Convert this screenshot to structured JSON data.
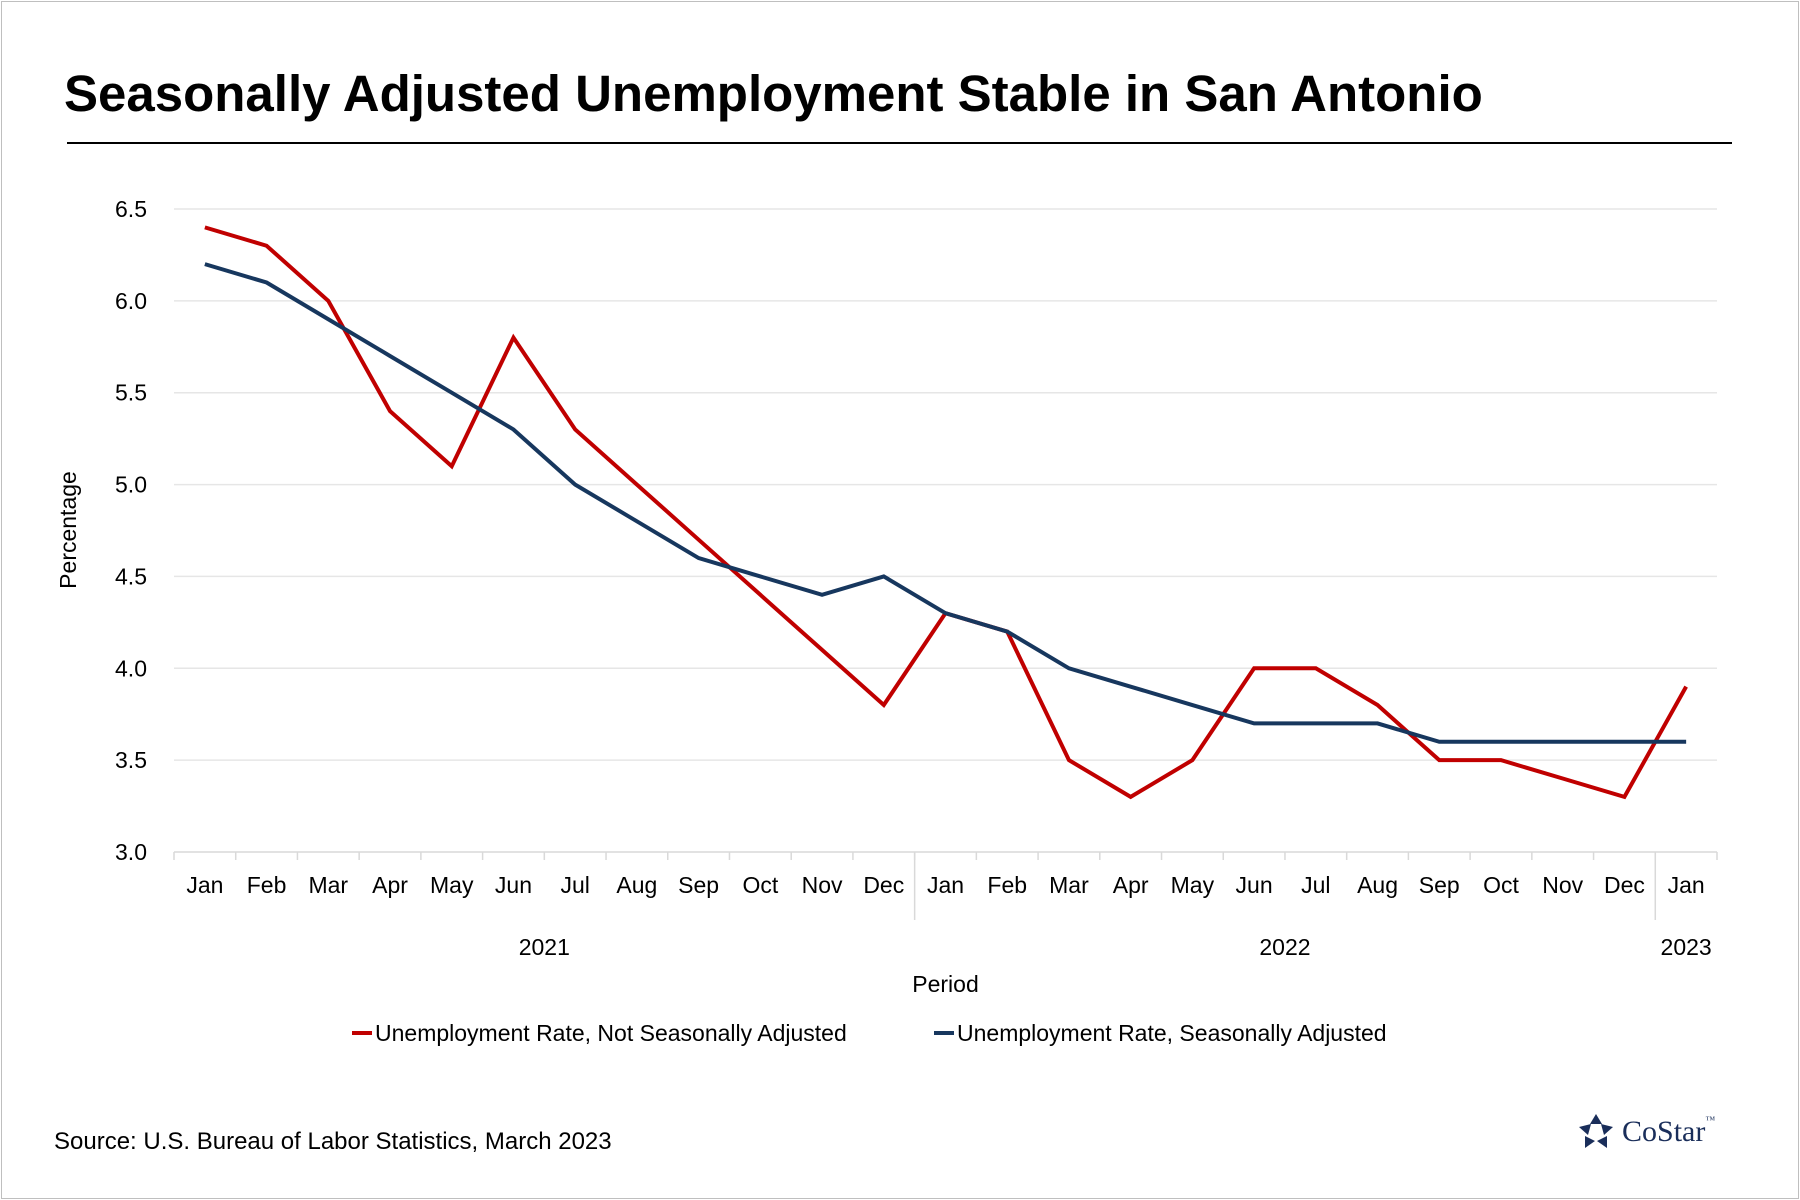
{
  "chart_data": {
    "type": "line",
    "title": "Seasonally Adjusted Unemployment Stable in San Antonio",
    "xlabel": "Period",
    "ylabel": "Percentage",
    "ylim": [
      3.0,
      6.5
    ],
    "yticks": [
      "3.0",
      "3.5",
      "4.0",
      "4.5",
      "5.0",
      "5.5",
      "6.0",
      "6.5"
    ],
    "grid": true,
    "legend_position": "bottom",
    "categories": [
      "Jan",
      "Feb",
      "Mar",
      "Apr",
      "May",
      "Jun",
      "Jul",
      "Aug",
      "Sep",
      "Oct",
      "Nov",
      "Dec",
      "Jan",
      "Feb",
      "Mar",
      "Apr",
      "May",
      "Jun",
      "Jul",
      "Aug",
      "Sep",
      "Oct",
      "Nov",
      "Dec",
      "Jan"
    ],
    "year_groups": [
      {
        "label": "2021",
        "start": 0,
        "end": 11
      },
      {
        "label": "2022",
        "start": 12,
        "end": 23
      },
      {
        "label": "2023",
        "start": 24,
        "end": 24
      }
    ],
    "series": [
      {
        "name": "Unemployment Rate, Not Seasonally Adjusted",
        "color": "#c00000",
        "values": [
          6.4,
          6.3,
          6.0,
          5.4,
          5.1,
          5.8,
          5.3,
          5.0,
          4.7,
          4.4,
          4.1,
          3.8,
          4.3,
          4.2,
          3.5,
          3.3,
          3.5,
          4.0,
          4.0,
          3.8,
          3.5,
          3.5,
          3.4,
          3.3,
          3.9
        ]
      },
      {
        "name": "Unemployment Rate, Seasonally Adjusted",
        "color": "#17375e",
        "values": [
          6.2,
          6.1,
          5.9,
          5.7,
          5.5,
          5.3,
          5.0,
          4.8,
          4.6,
          4.5,
          4.4,
          4.5,
          4.3,
          4.2,
          4.0,
          3.9,
          3.8,
          3.7,
          3.7,
          3.7,
          3.6,
          3.6,
          3.6,
          3.6,
          3.6
        ]
      }
    ]
  },
  "source": "Source: U.S. Bureau of Labor Statistics, March 2023",
  "logo": {
    "text": "CoStar",
    "tm": "™"
  }
}
